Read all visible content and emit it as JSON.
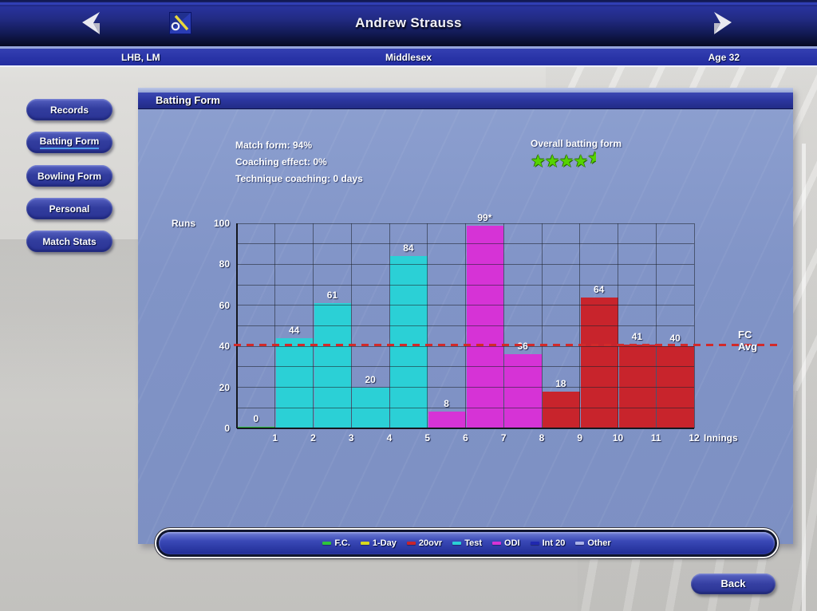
{
  "nav": {
    "title": "Andrew Strauss"
  },
  "infobar": {
    "left": "LHB, LM",
    "center": "Middlesex",
    "right": "Age 32"
  },
  "sidebar": {
    "items": [
      {
        "label": "Records",
        "active": false
      },
      {
        "label": "Batting Form",
        "active": true
      },
      {
        "label": "Bowling Form",
        "active": false
      },
      {
        "label": "Personal",
        "active": false
      },
      {
        "label": "Match Stats",
        "active": false
      }
    ]
  },
  "panel": {
    "title": "Batting Form",
    "stats": {
      "match_form": "Match form: 94%",
      "coaching_effect": "Coaching effect: 0%",
      "technique_coaching": "Technique coaching: 0 days"
    },
    "overall": {
      "label": "Overall batting form",
      "stars": 4.5,
      "star_color": "#55d400"
    }
  },
  "chart_data": {
    "type": "bar",
    "title": "Batting Form",
    "xlabel": "Innings",
    "ylabel": "Runs",
    "ylim": [
      0,
      100
    ],
    "yticks": [
      0,
      20,
      40,
      60,
      80,
      100
    ],
    "grid_step": 10,
    "grid": true,
    "categories": [
      "1",
      "2",
      "3",
      "4",
      "5",
      "6",
      "7",
      "8",
      "9",
      "10",
      "11",
      "12"
    ],
    "values": [
      0,
      44,
      61,
      20,
      84,
      8,
      99,
      36,
      18,
      64,
      41,
      40
    ],
    "bar_labels": [
      "0",
      "44",
      "61",
      "20",
      "84",
      "8",
      "99*",
      "36",
      "18",
      "64",
      "41",
      "40"
    ],
    "bar_series": [
      "F.C.",
      "Test",
      "Test",
      "Test",
      "Test",
      "ODI",
      "ODI",
      "ODI",
      "20ovr",
      "20ovr",
      "20ovr",
      "20ovr"
    ],
    "avg_line": {
      "label": "FC Avg",
      "value": 41,
      "color": "#d22a2a"
    },
    "legend_position": "bottom"
  },
  "legend": {
    "items": [
      {
        "label": "F.C.",
        "color": "#2ec43c"
      },
      {
        "label": "1-Day",
        "color": "#d8d81e"
      },
      {
        "label": "20ovr",
        "color": "#c8242c"
      },
      {
        "label": "Test",
        "color": "#2bd0d6"
      },
      {
        "label": "ODI",
        "color": "#d633d6"
      },
      {
        "label": "Int 20",
        "color": "#2028b0"
      },
      {
        "label": "Other",
        "color": "#aab2e8"
      }
    ]
  },
  "back_button": {
    "label": "Back"
  }
}
